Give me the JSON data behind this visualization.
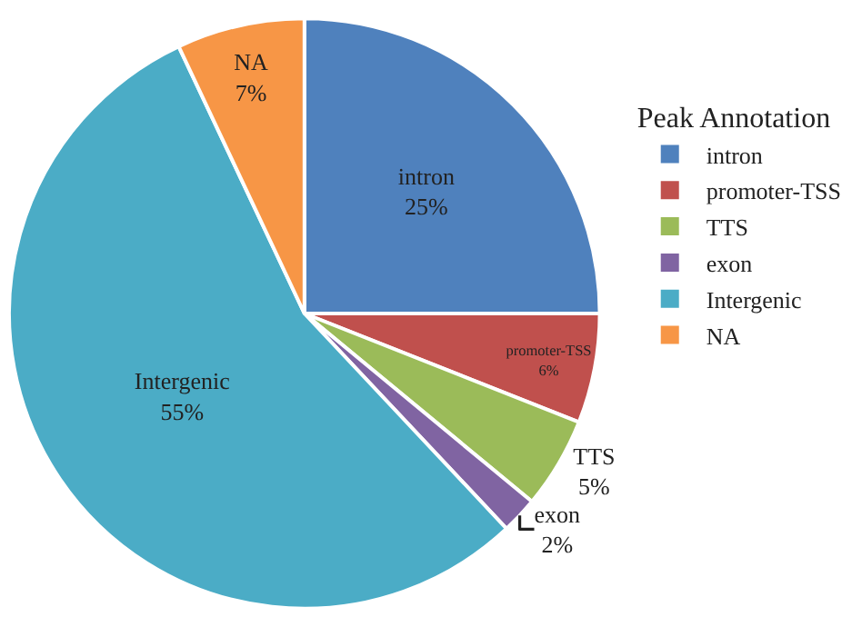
{
  "chart_data": {
    "type": "pie",
    "legend_title": "Peak Annotation",
    "categories": [
      "intron",
      "promoter-TSS",
      "TTS",
      "exon",
      "Intergenic",
      "NA"
    ],
    "values": [
      25,
      6,
      5,
      2,
      55,
      7
    ],
    "value_labels": [
      "25%",
      "6%",
      "5%",
      "2%",
      "55%",
      "7%"
    ],
    "colors": [
      "#4f81bd",
      "#c0504d",
      "#9bbb59",
      "#8064a2",
      "#4bacc6",
      "#f79646"
    ],
    "legend": "right"
  }
}
